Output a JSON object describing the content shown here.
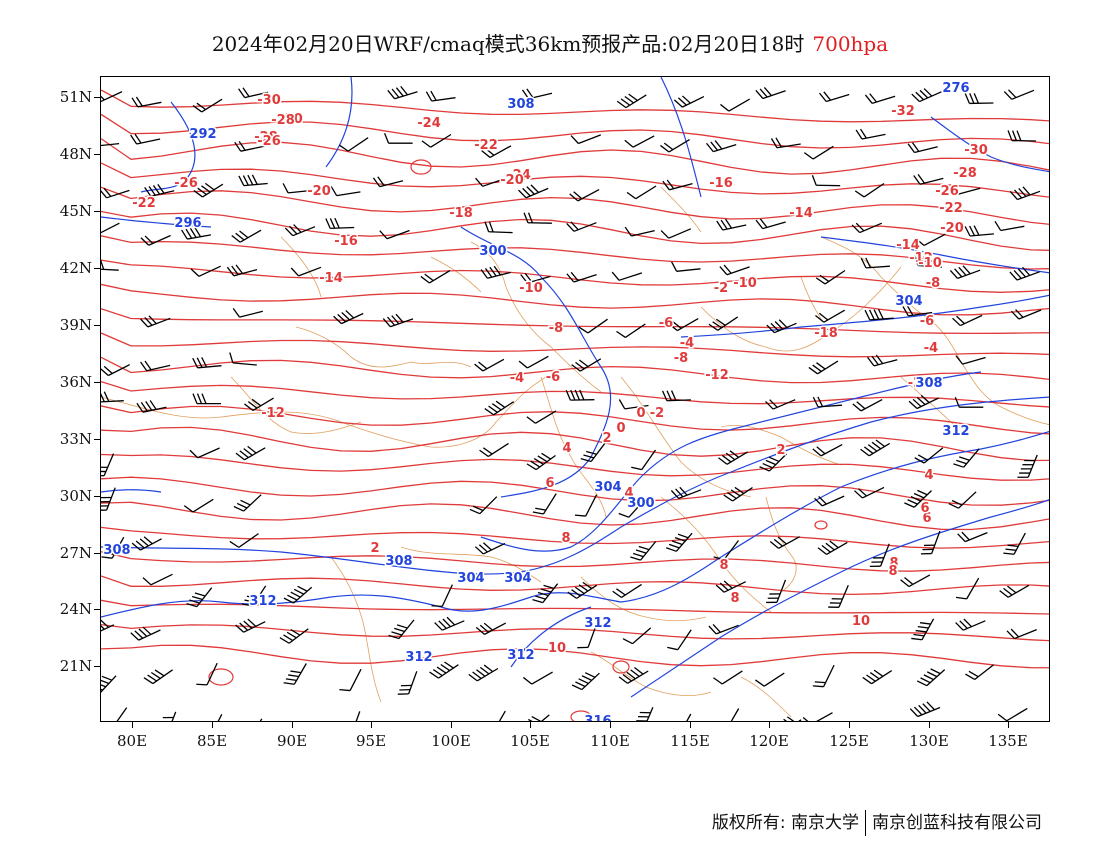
{
  "header": {
    "title": "2024年02月20日WRF/cmaq模式36km预报产品:02月20日18时",
    "level": "700hpa"
  },
  "axes": {
    "lat_labels": [
      "51N",
      "48N",
      "45N",
      "42N",
      "39N",
      "36N",
      "33N",
      "30N",
      "27N",
      "24N",
      "21N"
    ],
    "lon_labels": [
      "80E",
      "85E",
      "90E",
      "95E",
      "100E",
      "105E",
      "110E",
      "115E",
      "120E",
      "125E",
      "130E",
      "135E"
    ]
  },
  "colors": {
    "temperature_contour": "#e03a3a",
    "height_contour": "#2244dd",
    "borders": "#e0a060",
    "wind_barb": "#000000"
  },
  "temperature_labels": [
    "-30",
    "-30",
    "-28",
    "-28",
    "-26",
    "-26",
    "-24",
    "-24",
    "-22",
    "-22",
    "-20",
    "-20",
    "-18",
    "-18",
    "-16",
    "-16",
    "-14",
    "-14",
    "-12",
    "-12",
    "-10",
    "-10",
    "-8",
    "-8",
    "-6",
    "-6",
    "-4",
    "-4",
    "-2",
    "-2",
    "0",
    "0",
    "2",
    "2",
    "4",
    "4",
    "6",
    "6",
    "8",
    "8",
    "10",
    "-32",
    "-30",
    "-28",
    "-26",
    "-22",
    "-20",
    "-14",
    "-12",
    "-10",
    "-8",
    "-6",
    "-4",
    "-2",
    "2",
    "4",
    "6",
    "8",
    "8",
    "8",
    "10"
  ],
  "height_labels": [
    "292",
    "296",
    "300",
    "300",
    "304",
    "304",
    "308",
    "308",
    "312",
    "312",
    "312",
    "316",
    "276",
    "304",
    "308",
    "312",
    "308",
    "304",
    "312"
  ],
  "footer": {
    "copyright": "版权所有: 南京大学",
    "company": "南京创蓝科技有限公司"
  }
}
